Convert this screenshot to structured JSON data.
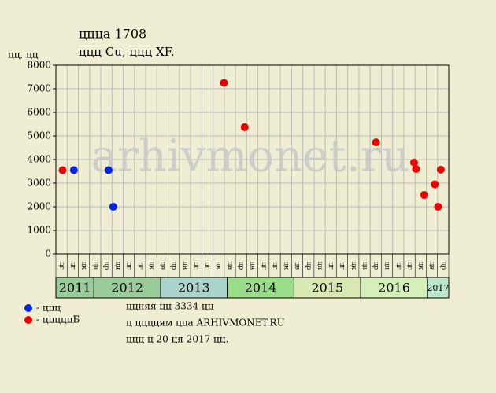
{
  "chart_data": {
    "type": "scatter",
    "title": "ццца 1708",
    "subtitle": "ццц Cu, ццц XF.",
    "y_label": "цц, цц",
    "watermark": "arhivmonet.ru",
    "xlim": [
      2011.43,
      2017.32
    ],
    "ylim": [
      0,
      8000
    ],
    "yticks": [
      0,
      1000,
      2000,
      3000,
      4000,
      5000,
      6000,
      7000,
      8000
    ],
    "grid": true,
    "years": [
      "2011",
      "2012",
      "2013",
      "2014",
      "2015",
      "2016",
      "2017"
    ],
    "year_colors": [
      "#99cc99",
      "#99cc99",
      "#aad4cc",
      "#99dd88",
      "#d8e8b0",
      "#d4f0b8",
      "#bbe8cc"
    ],
    "column_labels": [
      "цг",
      "цг",
      "цк",
      "цв",
      "цр",
      "цн",
      "цг",
      "цг",
      "цк",
      "цв",
      "цр",
      "цн",
      "цг",
      "цг",
      "цк",
      "цв",
      "цр",
      "цн",
      "цг",
      "цг",
      "цк",
      "цв",
      "цр",
      "цн",
      "цг",
      "цг",
      "цк",
      "цв",
      "цр",
      "цн",
      "цг",
      "цг",
      "цк",
      "цв",
      "цр"
    ],
    "series": [
      {
        "name": "- ццц",
        "color": "#0022ee",
        "x": [
          2011.7,
          2012.22,
          2012.29
        ],
        "values": [
          3550,
          3550,
          2000
        ]
      },
      {
        "name": "- цццццБ",
        "color": "#ee0000",
        "x": [
          2011.53,
          2013.95,
          2014.26,
          2016.23,
          2016.8,
          2016.83,
          2016.95,
          2017.11,
          2017.16,
          2017.2
        ],
        "values": [
          3550,
          7250,
          5370,
          4730,
          3870,
          3600,
          2500,
          2950,
          2000,
          3570
        ]
      }
    ],
    "notes": [
      "ццняя цц 3334 цц",
      "ц ццццям ццa ARHIVMONET.RU",
      "ццц ц 20 ця 2017 цц."
    ]
  }
}
